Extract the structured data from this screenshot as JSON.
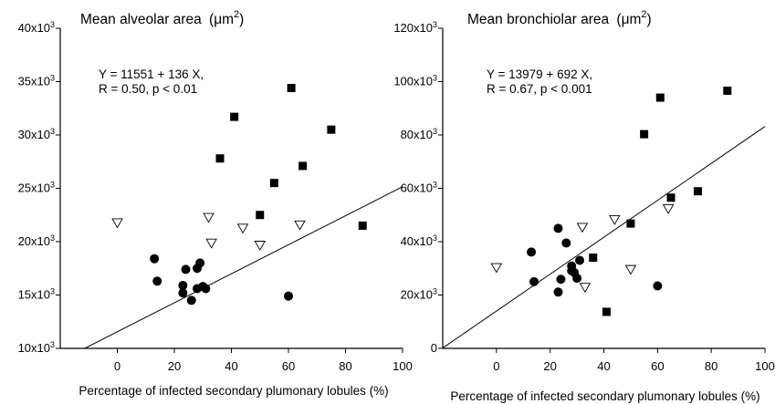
{
  "chart_data": [
    {
      "type": "scatter",
      "title": "Mean alveolar area (μm²)",
      "title_text": "Mean alveolar area",
      "title_unit": "μm",
      "title_unit_sup": "2",
      "xlabel": "Percentage of infected secondary plumonary lobules (%)",
      "ylabel": "",
      "xlim": [
        -20,
        100
      ],
      "ylim": [
        10000,
        40000
      ],
      "x_ticks": [
        {
          "value": 0,
          "label": "0"
        },
        {
          "value": 20,
          "label": "20"
        },
        {
          "value": 40,
          "label": "40"
        },
        {
          "value": 60,
          "label": "60"
        },
        {
          "value": 80,
          "label": "80"
        },
        {
          "value": 100,
          "label": "100"
        }
      ],
      "y_ticks": [
        {
          "value": 10000,
          "base": "10x10",
          "exp": "3"
        },
        {
          "value": 15000,
          "base": "15x10",
          "exp": "3"
        },
        {
          "value": 20000,
          "base": "20x10",
          "exp": "3"
        },
        {
          "value": 25000,
          "base": "25x10",
          "exp": "3"
        },
        {
          "value": 30000,
          "base": "30x10",
          "exp": "3"
        },
        {
          "value": 35000,
          "base": "35x10",
          "exp": "3"
        },
        {
          "value": 40000,
          "base": "40x10",
          "exp": "3"
        }
      ],
      "equation": [
        "Y = 11551 + 136 X,",
        "R = 0.50, p < 0.01"
      ],
      "regression": {
        "intercept": 11551,
        "slope": 136
      },
      "series": [
        {
          "marker": "square",
          "points": [
            [
              36,
              27800
            ],
            [
              41,
              31700
            ],
            [
              50,
              22500
            ],
            [
              55,
              25500
            ],
            [
              61,
              34400
            ],
            [
              65,
              27100
            ],
            [
              75,
              30500
            ],
            [
              86,
              21500
            ]
          ]
        },
        {
          "marker": "triangle-down",
          "points": [
            [
              0,
              21800
            ],
            [
              32,
              22300
            ],
            [
              33,
              19900
            ],
            [
              44,
              21300
            ],
            [
              50,
              19700
            ],
            [
              64,
              21600
            ]
          ]
        },
        {
          "marker": "circle",
          "points": [
            [
              13,
              18400
            ],
            [
              14,
              16300
            ],
            [
              23,
              15900
            ],
            [
              23,
              15200
            ],
            [
              24,
              17400
            ],
            [
              26,
              14500
            ],
            [
              28,
              17500
            ],
            [
              28,
              15600
            ],
            [
              29,
              18000
            ],
            [
              30,
              15800
            ],
            [
              31,
              15600
            ],
            [
              60,
              14900
            ]
          ]
        }
      ]
    },
    {
      "type": "scatter",
      "title": "Mean bronchiolar area (μm²)",
      "title_text": "Mean bronchiolar area",
      "title_unit": "μm",
      "title_unit_sup": "2",
      "xlabel": "Percentage of infected secondary plumonary lobules (%)",
      "ylabel": "",
      "xlim": [
        -20,
        100
      ],
      "ylim": [
        0,
        120000
      ],
      "x_ticks": [
        {
          "value": 0,
          "label": "0"
        },
        {
          "value": 20,
          "label": "20"
        },
        {
          "value": 40,
          "label": "40"
        },
        {
          "value": 60,
          "label": "60"
        },
        {
          "value": 80,
          "label": "80"
        },
        {
          "value": 100,
          "label": "100"
        }
      ],
      "y_ticks": [
        {
          "value": 0,
          "base": "0",
          "exp": ""
        },
        {
          "value": 20000,
          "base": "20x10",
          "exp": "3"
        },
        {
          "value": 40000,
          "base": "40x10",
          "exp": "3"
        },
        {
          "value": 60000,
          "base": "60x10",
          "exp": "3"
        },
        {
          "value": 80000,
          "base": "80x10",
          "exp": "3"
        },
        {
          "value": 100000,
          "base": "100x10",
          "exp": "3"
        },
        {
          "value": 120000,
          "base": "120x10",
          "exp": "3"
        }
      ],
      "equation": [
        "Y = 13979 + 692 X,",
        "R = 0.67, p < 0.001"
      ],
      "regression": {
        "intercept": 13979,
        "slope": 692
      },
      "series": [
        {
          "marker": "square",
          "points": [
            [
              36,
              34000
            ],
            [
              41,
              13700
            ],
            [
              50,
              46800
            ],
            [
              55,
              80300
            ],
            [
              61,
              94000
            ],
            [
              65,
              56500
            ],
            [
              75,
              58900
            ],
            [
              86,
              96600
            ]
          ]
        },
        {
          "marker": "triangle-down",
          "points": [
            [
              0,
              30400
            ],
            [
              32,
              45500
            ],
            [
              33,
              23000
            ],
            [
              44,
              48400
            ],
            [
              50,
              29700
            ],
            [
              64,
              52500
            ]
          ]
        },
        {
          "marker": "circle",
          "points": [
            [
              13,
              36100
            ],
            [
              14,
              25000
            ],
            [
              23,
              45000
            ],
            [
              23,
              21100
            ],
            [
              24,
              25900
            ],
            [
              26,
              39500
            ],
            [
              28,
              30900
            ],
            [
              28,
              29100
            ],
            [
              29,
              28400
            ],
            [
              30,
              26300
            ],
            [
              31,
              33000
            ],
            [
              60,
              23400
            ]
          ]
        }
      ]
    }
  ]
}
